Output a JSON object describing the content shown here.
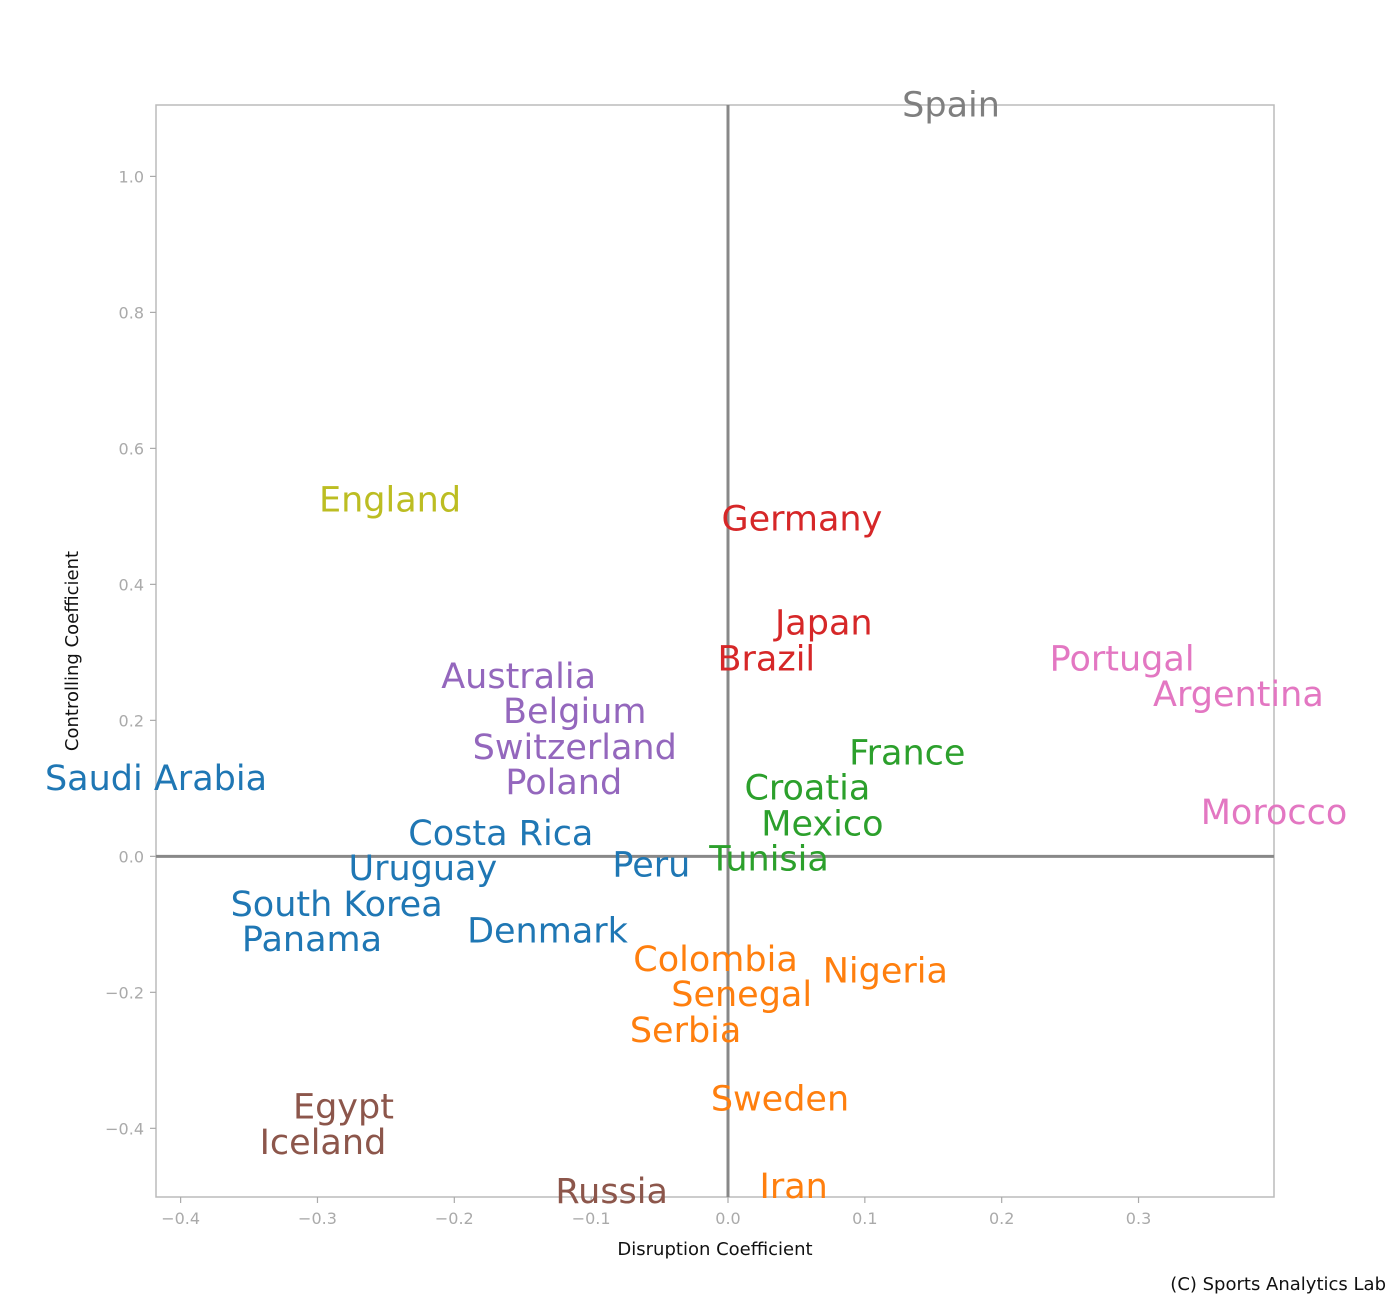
{
  "chart_data": {
    "type": "scatter",
    "title": "",
    "xlabel": "Disruption Coefficient",
    "ylabel": "Controlling Coefficient",
    "xlim": [
      -0.418,
      0.399
    ],
    "ylim": [
      -0.501,
      1.105
    ],
    "xticks": [
      -0.4,
      -0.3,
      -0.2,
      -0.1,
      0.0,
      0.1,
      0.2,
      0.3
    ],
    "xtick_labels": [
      "−0.4",
      "−0.3",
      "−0.2",
      "−0.1",
      "0.0",
      "0.1",
      "0.2",
      "0.3"
    ],
    "yticks": [
      -0.4,
      -0.2,
      0.0,
      0.2,
      0.4,
      0.6,
      0.8,
      1.0
    ],
    "ytick_labels": [
      "−0.4",
      "−0.2",
      "0.0",
      "0.2",
      "0.4",
      "0.6",
      "0.8",
      "1.0"
    ],
    "grid": false,
    "reference_lines": {
      "x": 0,
      "y": 0
    },
    "points": [
      {
        "label": "Spain",
        "x": 0.163,
        "y": 1.106,
        "color": "#7f7f7f"
      },
      {
        "label": "England",
        "x": -0.247,
        "y": 0.525,
        "color": "#bcbd22"
      },
      {
        "label": "Germany",
        "x": 0.054,
        "y": 0.497,
        "color": "#d62728"
      },
      {
        "label": "Japan",
        "x": 0.07,
        "y": 0.326,
        "color": "#d62728"
      },
      {
        "label": "Brazil",
        "x": 0.028,
        "y": 0.309,
        "color": "#d62728"
      },
      {
        "label": "Portugal",
        "x": 0.288,
        "y": 0.271,
        "color": "#e377c2"
      },
      {
        "label": "Argentina",
        "x": 0.373,
        "y": 0.259,
        "color": "#e377c2"
      },
      {
        "label": "Morocco",
        "x": 0.399,
        "y": 0.065,
        "color": "#e377c2"
      },
      {
        "label": "Australia",
        "x": -0.153,
        "y": 0.226,
        "color": "#9467bd"
      },
      {
        "label": "Belgium",
        "x": -0.112,
        "y": 0.209,
        "color": "#9467bd"
      },
      {
        "label": "Switzerland",
        "x": -0.112,
        "y": 0.185,
        "color": "#9467bd"
      },
      {
        "label": "Poland",
        "x": -0.12,
        "y": 0.129,
        "color": "#9467bd"
      },
      {
        "label": "Saudi Arabia",
        "x": -0.418,
        "y": 0.115,
        "color": "#1f77b4"
      },
      {
        "label": "France",
        "x": 0.131,
        "y": 0.126,
        "color": "#2ca02c"
      },
      {
        "label": "Croatia",
        "x": 0.058,
        "y": 0.082,
        "color": "#2ca02c"
      },
      {
        "label": "Mexico",
        "x": 0.069,
        "y": 0.065,
        "color": "#2ca02c"
      },
      {
        "label": "Tunisia",
        "x": 0.03,
        "y": 0.026,
        "color": "#2ca02c"
      },
      {
        "label": "Costa Rica",
        "x": -0.166,
        "y": 0.029,
        "color": "#1f77b4"
      },
      {
        "label": "Peru",
        "x": -0.056,
        "y": -0.012,
        "color": "#1f77b4"
      },
      {
        "label": "Uruguay",
        "x": -0.223,
        "y": -0.035,
        "color": "#1f77b4"
      },
      {
        "label": "South Korea",
        "x": -0.286,
        "y": -0.059,
        "color": "#1f77b4"
      },
      {
        "label": "Panama",
        "x": -0.304,
        "y": -0.109,
        "color": "#1f77b4"
      },
      {
        "label": "Denmark",
        "x": -0.131,
        "y": -0.109,
        "color": "#1f77b4"
      },
      {
        "label": "Colombia",
        "x": -0.01,
        "y": -0.168,
        "color": "#ff7f0e"
      },
      {
        "label": "Nigeria",
        "x": 0.115,
        "y": -0.168,
        "color": "#ff7f0e"
      },
      {
        "label": "Senegal",
        "x": 0.01,
        "y": -0.215,
        "color": "#ff7f0e"
      },
      {
        "label": "Serbia",
        "x": -0.031,
        "y": -0.226,
        "color": "#ff7f0e"
      },
      {
        "label": "Sweden",
        "x": 0.038,
        "y": -0.356,
        "color": "#ff7f0e"
      },
      {
        "label": "Iran",
        "x": 0.048,
        "y": -0.485,
        "color": "#ff7f0e"
      },
      {
        "label": "Egypt",
        "x": -0.281,
        "y": -0.382,
        "color": "#8c564b"
      },
      {
        "label": "Iceland",
        "x": -0.296,
        "y": -0.406,
        "color": "#8c564b"
      },
      {
        "label": "Russia",
        "x": -0.085,
        "y": -0.5,
        "color": "#8c564b"
      }
    ]
  },
  "credit": "(C) Sports Analytics Lab"
}
